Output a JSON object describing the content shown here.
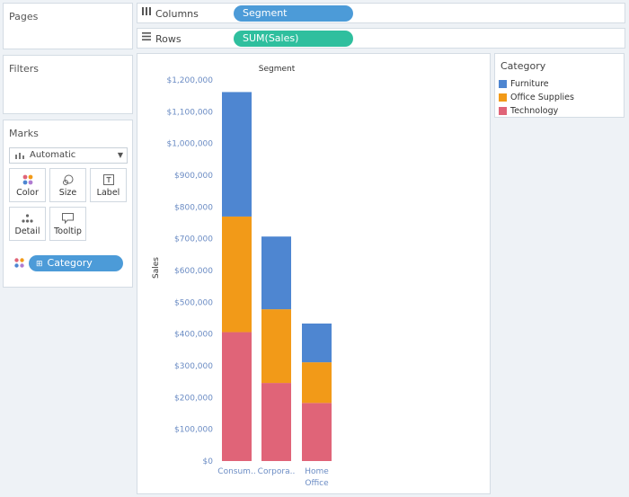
{
  "cards": {
    "pages": "Pages",
    "filters": "Filters",
    "marks": "Marks"
  },
  "shelves": {
    "columns": {
      "label": "Columns",
      "pill": "Segment",
      "icon": "columns-icon"
    },
    "rows": {
      "label": "Rows",
      "pill": "SUM(Sales)",
      "icon": "rows-icon"
    }
  },
  "marks": {
    "type": "Automatic",
    "buttons": [
      {
        "label": "Color",
        "icon": "color-icon"
      },
      {
        "label": "Size",
        "icon": "size-icon"
      },
      {
        "label": "Label",
        "icon": "label-icon"
      },
      {
        "label": "Detail",
        "icon": "detail-icon"
      },
      {
        "label": "Tooltip",
        "icon": "tooltip-icon"
      }
    ],
    "color_field": "Category"
  },
  "legend": {
    "title": "Category",
    "items": [
      {
        "label": "Furniture",
        "color": "#4e86d1"
      },
      {
        "label": "Office Supplies",
        "color": "#f29a18"
      },
      {
        "label": "Technology",
        "color": "#e06478"
      }
    ]
  },
  "chart_data": {
    "type": "bar",
    "stacked": true,
    "title": "Segment",
    "xlabel": "",
    "ylabel": "Sales",
    "categories": [
      "Consum..",
      "Corpora..",
      "Home Office"
    ],
    "category_lines": [
      [
        "Consum.."
      ],
      [
        "Corpora.."
      ],
      [
        "Home",
        "Office"
      ]
    ],
    "series": [
      {
        "name": "Technology",
        "color": "#e06478",
        "values": [
          406000,
          246000,
          183000
        ]
      },
      {
        "name": "Office Supplies",
        "color": "#f29a18",
        "values": [
          364000,
          232000,
          128000
        ]
      },
      {
        "name": "Furniture",
        "color": "#4e86d1",
        "values": [
          392000,
          229000,
          122000
        ]
      }
    ],
    "ylim": [
      0,
      1200000
    ],
    "yticks": [
      0,
      100000,
      200000,
      300000,
      400000,
      500000,
      600000,
      700000,
      800000,
      900000,
      1000000,
      1100000,
      1200000
    ],
    "ytick_labels": [
      "$0",
      "$100,000",
      "$200,000",
      "$300,000",
      "$400,000",
      "$500,000",
      "$600,000",
      "$700,000",
      "$800,000",
      "$900,000",
      "$1,000,000",
      "$1,100,000",
      "$1,200,000"
    ],
    "grid": false,
    "legend": "right"
  }
}
